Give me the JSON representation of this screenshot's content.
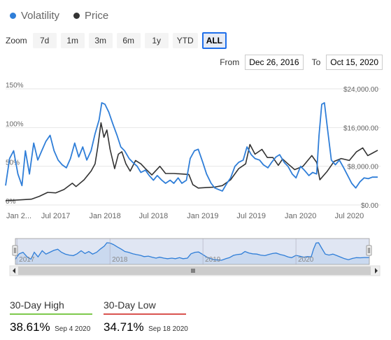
{
  "legend": [
    {
      "name": "Volatility",
      "color": "#2f7ed8"
    },
    {
      "name": "Price",
      "color": "#333333"
    }
  ],
  "zoom": {
    "label": "Zoom",
    "buttons": [
      "7d",
      "1m",
      "3m",
      "6m",
      "1y",
      "YTD",
      "ALL"
    ],
    "selected": "ALL"
  },
  "range": {
    "from_label": "From",
    "from_value": "Dec 26, 2016",
    "to_label": "To",
    "to_value": "Oct 15, 2020"
  },
  "stats": {
    "high": {
      "label": "30-Day High",
      "value": "38.61%",
      "date": "Sep 4 2020",
      "color": "#7ec94c"
    },
    "low": {
      "label": "30-Day Low",
      "value": "34.71%",
      "date": "Sep 18 2020",
      "color": "#d9534f"
    }
  },
  "chart_data": {
    "type": "line",
    "x_range": [
      "2016-12-26",
      "2020-10-15"
    ],
    "x_tick_labels": [
      {
        "date": "2017-01-01",
        "label": "Jan 2..."
      },
      {
        "date": "2017-07-01",
        "label": "Jul 2017"
      },
      {
        "date": "2018-01-01",
        "label": "Jan 2018"
      },
      {
        "date": "2018-07-01",
        "label": "Jul 2018"
      },
      {
        "date": "2019-01-01",
        "label": "Jan 2019"
      },
      {
        "date": "2019-07-01",
        "label": "Jul 2019"
      },
      {
        "date": "2020-01-01",
        "label": "Jan 2020"
      },
      {
        "date": "2020-07-01",
        "label": "Jul 2020"
      }
    ],
    "y_left": {
      "min": 0,
      "max": 150,
      "ticks": [
        0,
        50,
        100,
        150
      ],
      "tick_labels": [
        "0%",
        "50%",
        "100%",
        "150%"
      ]
    },
    "y_right": {
      "min": 0,
      "max": 24000,
      "ticks": [
        0,
        8000,
        16000,
        24000
      ],
      "tick_labels": [
        "$0.00",
        "$8,000.00",
        "$16,000.00",
        "$24,000.00"
      ]
    },
    "navigator_labels": [
      {
        "date": "2017-01-01",
        "label": "2017"
      },
      {
        "date": "2018-01-01",
        "label": "2018"
      },
      {
        "date": "2019-01-01",
        "label": "2019"
      },
      {
        "date": "2020-01-01",
        "label": "2020"
      }
    ],
    "grid": true,
    "series": [
      {
        "name": "Volatility",
        "axis": "left",
        "color": "#2f7ed8",
        "points": [
          [
            "2016-12-26",
            25
          ],
          [
            "2017-01-10",
            60
          ],
          [
            "2017-01-25",
            70
          ],
          [
            "2017-02-10",
            40
          ],
          [
            "2017-02-25",
            25
          ],
          [
            "2017-03-10",
            70
          ],
          [
            "2017-03-25",
            40
          ],
          [
            "2017-04-10",
            80
          ],
          [
            "2017-04-25",
            58
          ],
          [
            "2017-05-10",
            70
          ],
          [
            "2017-05-25",
            82
          ],
          [
            "2017-06-10",
            90
          ],
          [
            "2017-06-25",
            70
          ],
          [
            "2017-07-10",
            58
          ],
          [
            "2017-07-25",
            52
          ],
          [
            "2017-08-10",
            48
          ],
          [
            "2017-08-25",
            60
          ],
          [
            "2017-09-10",
            80
          ],
          [
            "2017-09-25",
            62
          ],
          [
            "2017-10-10",
            75
          ],
          [
            "2017-10-25",
            58
          ],
          [
            "2017-11-10",
            70
          ],
          [
            "2017-11-25",
            92
          ],
          [
            "2017-12-10",
            110
          ],
          [
            "2017-12-20",
            132
          ],
          [
            "2018-01-01",
            130
          ],
          [
            "2018-01-15",
            120
          ],
          [
            "2018-01-30",
            105
          ],
          [
            "2018-02-15",
            90
          ],
          [
            "2018-03-01",
            75
          ],
          [
            "2018-03-15",
            70
          ],
          [
            "2018-04-01",
            60
          ],
          [
            "2018-04-15",
            55
          ],
          [
            "2018-05-01",
            50
          ],
          [
            "2018-05-15",
            42
          ],
          [
            "2018-06-01",
            45
          ],
          [
            "2018-06-15",
            38
          ],
          [
            "2018-07-01",
            32
          ],
          [
            "2018-07-15",
            38
          ],
          [
            "2018-08-01",
            32
          ],
          [
            "2018-08-15",
            28
          ],
          [
            "2018-09-01",
            32
          ],
          [
            "2018-09-15",
            28
          ],
          [
            "2018-10-01",
            35
          ],
          [
            "2018-10-15",
            28
          ],
          [
            "2018-11-01",
            32
          ],
          [
            "2018-11-15",
            60
          ],
          [
            "2018-12-01",
            70
          ],
          [
            "2018-12-15",
            72
          ],
          [
            "2019-01-01",
            55
          ],
          [
            "2019-01-15",
            40
          ],
          [
            "2019-02-01",
            28
          ],
          [
            "2019-02-15",
            22
          ],
          [
            "2019-03-01",
            20
          ],
          [
            "2019-03-15",
            18
          ],
          [
            "2019-04-01",
            28
          ],
          [
            "2019-04-15",
            35
          ],
          [
            "2019-05-01",
            50
          ],
          [
            "2019-05-15",
            55
          ],
          [
            "2019-06-01",
            58
          ],
          [
            "2019-06-15",
            75
          ],
          [
            "2019-07-01",
            65
          ],
          [
            "2019-07-15",
            60
          ],
          [
            "2019-08-01",
            58
          ],
          [
            "2019-08-15",
            52
          ],
          [
            "2019-09-01",
            48
          ],
          [
            "2019-09-15",
            55
          ],
          [
            "2019-10-01",
            62
          ],
          [
            "2019-10-15",
            65
          ],
          [
            "2019-11-01",
            55
          ],
          [
            "2019-11-15",
            50
          ],
          [
            "2019-12-01",
            40
          ],
          [
            "2019-12-15",
            35
          ],
          [
            "2020-01-01",
            50
          ],
          [
            "2020-01-15",
            45
          ],
          [
            "2020-02-01",
            38
          ],
          [
            "2020-02-15",
            42
          ],
          [
            "2020-03-01",
            40
          ],
          [
            "2020-03-10",
            90
          ],
          [
            "2020-03-20",
            130
          ],
          [
            "2020-03-30",
            132
          ],
          [
            "2020-04-10",
            100
          ],
          [
            "2020-04-25",
            58
          ],
          [
            "2020-05-10",
            52
          ],
          [
            "2020-05-25",
            58
          ],
          [
            "2020-06-10",
            48
          ],
          [
            "2020-06-25",
            38
          ],
          [
            "2020-07-10",
            28
          ],
          [
            "2020-07-25",
            22
          ],
          [
            "2020-08-10",
            30
          ],
          [
            "2020-08-25",
            35
          ],
          [
            "2020-09-10",
            34
          ],
          [
            "2020-09-25",
            36
          ],
          [
            "2020-10-15",
            36
          ]
        ]
      },
      {
        "name": "Price",
        "axis": "right",
        "color": "#333333",
        "points": [
          [
            "2016-12-26",
            900
          ],
          [
            "2017-02-01",
            1000
          ],
          [
            "2017-03-01",
            1100
          ],
          [
            "2017-04-01",
            1200
          ],
          [
            "2017-05-01",
            1800
          ],
          [
            "2017-06-01",
            2600
          ],
          [
            "2017-07-01",
            2500
          ],
          [
            "2017-08-01",
            3200
          ],
          [
            "2017-09-01",
            4500
          ],
          [
            "2017-09-15",
            3800
          ],
          [
            "2017-10-15",
            5200
          ],
          [
            "2017-11-10",
            7000
          ],
          [
            "2017-11-25",
            8500
          ],
          [
            "2017-12-05",
            12000
          ],
          [
            "2017-12-17",
            17000
          ],
          [
            "2017-12-28",
            14000
          ],
          [
            "2018-01-08",
            15500
          ],
          [
            "2018-01-20",
            11500
          ],
          [
            "2018-02-06",
            7500
          ],
          [
            "2018-02-20",
            10500
          ],
          [
            "2018-03-05",
            11000
          ],
          [
            "2018-03-20",
            8500
          ],
          [
            "2018-04-05",
            7000
          ],
          [
            "2018-04-25",
            9200
          ],
          [
            "2018-05-15",
            8500
          ],
          [
            "2018-06-01",
            7500
          ],
          [
            "2018-06-25",
            6200
          ],
          [
            "2018-07-25",
            8000
          ],
          [
            "2018-08-15",
            6500
          ],
          [
            "2018-09-15",
            6500
          ],
          [
            "2018-10-15",
            6400
          ],
          [
            "2018-11-10",
            6300
          ],
          [
            "2018-11-25",
            4200
          ],
          [
            "2018-12-15",
            3500
          ],
          [
            "2019-01-15",
            3600
          ],
          [
            "2019-02-15",
            3700
          ],
          [
            "2019-03-15",
            4000
          ],
          [
            "2019-04-15",
            5200
          ],
          [
            "2019-05-15",
            7500
          ],
          [
            "2019-06-10",
            8500
          ],
          [
            "2019-06-26",
            12500
          ],
          [
            "2019-07-15",
            10500
          ],
          [
            "2019-08-10",
            11500
          ],
          [
            "2019-08-30",
            9800
          ],
          [
            "2019-09-20",
            9800
          ],
          [
            "2019-10-10",
            8200
          ],
          [
            "2019-10-26",
            9500
          ],
          [
            "2019-11-15",
            8500
          ],
          [
            "2019-12-10",
            7300
          ],
          [
            "2020-01-10",
            8000
          ],
          [
            "2020-02-12",
            10200
          ],
          [
            "2020-03-01",
            8800
          ],
          [
            "2020-03-13",
            5200
          ],
          [
            "2020-04-10",
            7000
          ],
          [
            "2020-05-05",
            9000
          ],
          [
            "2020-06-01",
            9600
          ],
          [
            "2020-07-01",
            9200
          ],
          [
            "2020-07-28",
            11000
          ],
          [
            "2020-08-20",
            11800
          ],
          [
            "2020-09-08",
            10200
          ],
          [
            "2020-09-25",
            10700
          ],
          [
            "2020-10-15",
            11300
          ]
        ]
      }
    ]
  }
}
